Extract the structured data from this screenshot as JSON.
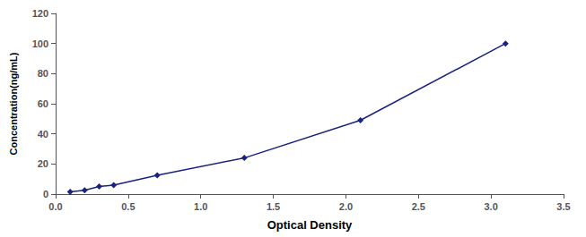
{
  "chart_data": {
    "type": "line",
    "xlabel": "Optical Density",
    "ylabel": "Concentration(ng/mL)",
    "x": [
      0.1,
      0.2,
      0.3,
      0.4,
      0.7,
      1.3,
      2.1,
      3.1
    ],
    "values": [
      1.5,
      2.5,
      5.0,
      6.0,
      12.5,
      24.0,
      49.0,
      100.0
    ],
    "color": "#1A237E",
    "marker": "diamond",
    "xlim": [
      0,
      3.5
    ],
    "ylim": [
      0,
      120
    ],
    "xticks": [
      {
        "value": 0,
        "label": "0.0"
      },
      0.5,
      {
        "value": 1.0,
        "label": "1.0"
      },
      1.5,
      {
        "value": 2.0,
        "label": "2.0"
      },
      2.5,
      {
        "value": 3.0,
        "label": "3.0"
      },
      3.5
    ],
    "yticks": [
      0,
      20,
      40,
      60,
      80,
      100,
      120
    ],
    "grid": false
  }
}
